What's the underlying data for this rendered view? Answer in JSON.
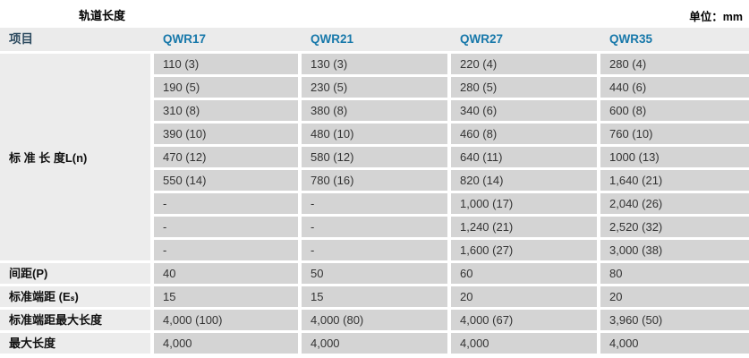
{
  "page": {
    "title": "轨道长度",
    "unit_label": "单位：mm"
  },
  "colors": {
    "header_item_text": "#2d4b60",
    "model_header_text": "#1778aa",
    "header_bg": "#ebebeb",
    "label_cell_bg": "#ececec",
    "data_cell_bg": "#d4d4d4"
  },
  "table": {
    "header": {
      "item": "项目",
      "models": [
        "QWR17",
        "QWR21",
        "QWR27",
        "QWR35"
      ]
    },
    "standard_length": {
      "label": "标 准 长 度L(n)",
      "rows": [
        [
          "110 (3)",
          "130 (3)",
          "220 (4)",
          "280 (4)"
        ],
        [
          "190 (5)",
          "230 (5)",
          "280 (5)",
          "440 (6)"
        ],
        [
          "310 (8)",
          "380 (8)",
          "340 (6)",
          "600 (8)"
        ],
        [
          "390 (10)",
          "480 (10)",
          "460 (8)",
          "760 (10)"
        ],
        [
          "470 (12)",
          "580 (12)",
          "640 (11)",
          "1000 (13)"
        ],
        [
          "550 (14)",
          "780 (16)",
          "820 (14)",
          "1,640 (21)"
        ],
        [
          "-",
          "-",
          "1,000 (17)",
          "2,040 (26)"
        ],
        [
          "-",
          "-",
          "1,240 (21)",
          "2,520 (32)"
        ],
        [
          "-",
          "-",
          "1,600 (27)",
          "3,000 (38)"
        ]
      ]
    },
    "spec_rows": [
      {
        "label": "间距(P)",
        "values": [
          "40",
          "50",
          "60",
          "80"
        ]
      },
      {
        "label": "标准端距 (Eₛ)",
        "values": [
          "15",
          "15",
          "20",
          "20"
        ]
      },
      {
        "label": "标准端距最大长度",
        "values": [
          "4,000 (100)",
          "4,000 (80)",
          "4,000 (67)",
          "3,960 (50)"
        ]
      },
      {
        "label": "最大长度",
        "values": [
          "4,000",
          "4,000",
          "4,000",
          "4,000"
        ]
      }
    ]
  }
}
